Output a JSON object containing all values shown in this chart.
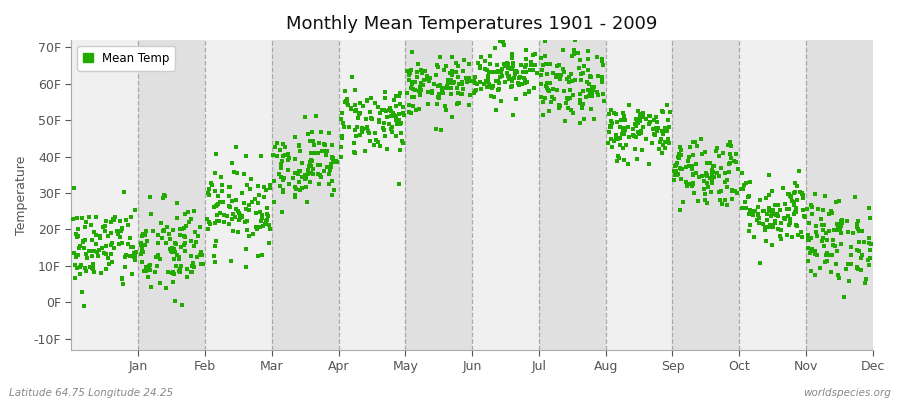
{
  "title": "Monthly Mean Temperatures 1901 - 2009",
  "ylabel": "Temperature",
  "bottom_left": "Latitude 64.75 Longitude 24.25",
  "bottom_right": "worldspecies.org",
  "legend_label": "Mean Temp",
  "marker_color": "#22aa00",
  "background_color": "#ffffff",
  "band_color_light": "#f0f0f0",
  "band_color_dark": "#e0e0e0",
  "ylim": [
    -13,
    72
  ],
  "yticks": [
    -10,
    0,
    10,
    20,
    30,
    40,
    50,
    60,
    70
  ],
  "ytick_labels": [
    "-10F",
    "0F",
    "10F",
    "20F",
    "30F",
    "40F",
    "50F",
    "60F",
    "70F"
  ],
  "months": [
    "Jan",
    "Feb",
    "Mar",
    "Apr",
    "May",
    "Jun",
    "Jul",
    "Aug",
    "Sep",
    "Oct",
    "Nov",
    "Dec"
  ],
  "mean_temps_f": [
    15,
    14,
    26,
    38,
    50,
    59,
    63,
    59,
    47,
    36,
    25,
    17
  ],
  "spread": [
    6,
    7,
    6,
    5,
    5,
    4,
    4,
    5,
    4,
    5,
    5,
    6
  ],
  "n_points": 109
}
